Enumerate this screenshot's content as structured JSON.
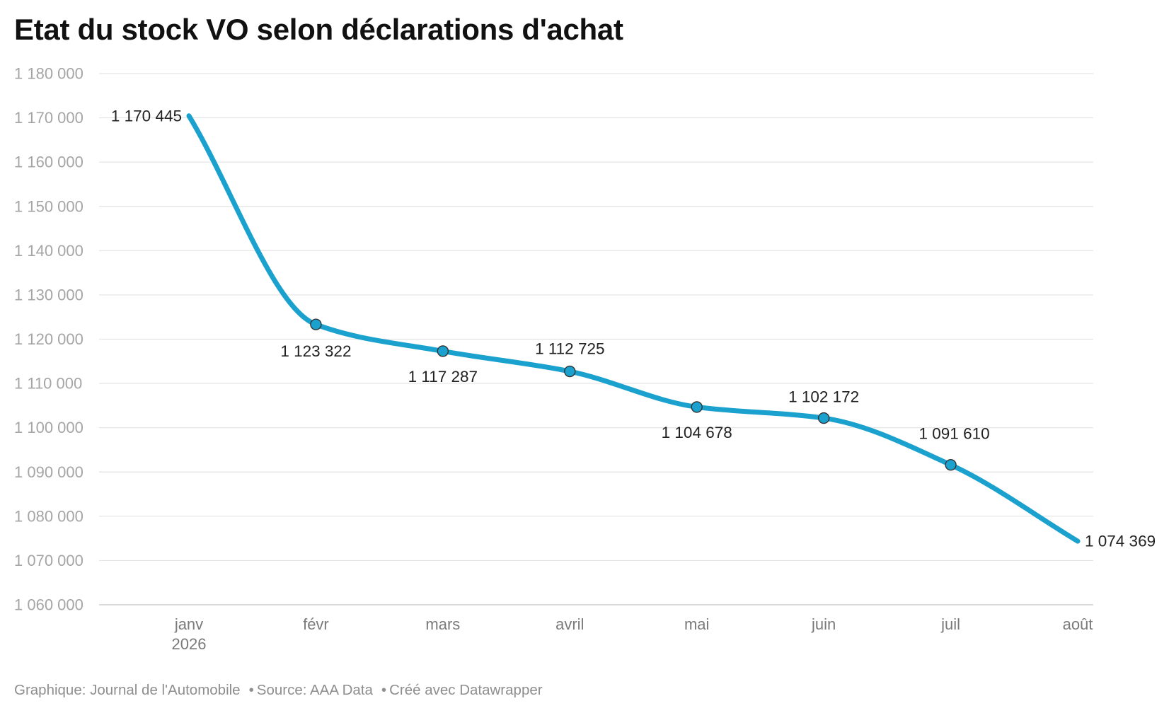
{
  "footer": {
    "credit": "Graphique: Journal de l'Automobile",
    "source": "Source: AAA Data",
    "tool": "Créé avec Datawrapper"
  },
  "chart_data": {
    "type": "line",
    "title": "Etat du stock VO selon déclarations d'achat",
    "xlabel": "",
    "ylabel": "",
    "categories": [
      "janv",
      "févr",
      "mars",
      "avril",
      "mai",
      "juin",
      "juil",
      "août"
    ],
    "category_sublabels": [
      "2026",
      "",
      "",
      "",
      "",
      "",
      "",
      ""
    ],
    "series": [
      {
        "values": [
          1170445,
          1123322,
          1117287,
          1112725,
          1104678,
          1102172,
          1091610,
          1074369
        ],
        "data_labels": [
          "1 170 445",
          "1 123 322",
          "1 117 287",
          "1 112 725",
          "1 104 678",
          "1 102 172",
          "1 091 610",
          "1 074 369"
        ],
        "color": "#1aa1ce"
      }
    ],
    "ylim": [
      1060000,
      1180000
    ],
    "yticks": [
      1060000,
      1070000,
      1080000,
      1090000,
      1100000,
      1110000,
      1120000,
      1130000,
      1140000,
      1150000,
      1160000,
      1170000,
      1180000
    ],
    "ytick_labels": [
      "1 060 000",
      "1 070 000",
      "1 080 000",
      "1 090 000",
      "1 100 000",
      "1 110 000",
      "1 120 000",
      "1 130 000",
      "1 140 000",
      "1 150 000",
      "1 160 000",
      "1 170 000",
      "1 180 000"
    ],
    "grid": true,
    "legend": "none",
    "curve": "smooth",
    "colors": {
      "line": "#1aa1ce",
      "grid": "#e3e3e3",
      "axis_baseline": "#cfcfcf",
      "marker_stroke": "#333333"
    }
  }
}
